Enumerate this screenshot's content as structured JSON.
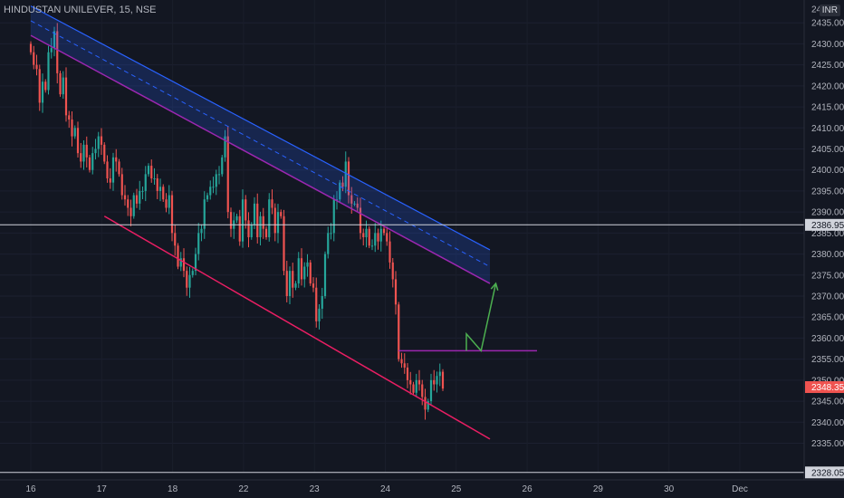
{
  "header": {
    "symbol_line": "HINDUSTAN UNILEVER, 15, NSE",
    "currency": "INR"
  },
  "colors": {
    "background": "#131722",
    "up": "#26a69a",
    "down": "#ef5350",
    "channel": "#2962ff",
    "purple": "#9c27b0",
    "support": "#e91e63",
    "arrow": "#4caf50",
    "hline": "#d1d4dc"
  },
  "chart_data": {
    "type": "candlestick",
    "title": "",
    "x_ticks": [
      "16",
      "17",
      "18",
      "22",
      "23",
      "24",
      "25",
      "26",
      "29",
      "30",
      "Dec"
    ],
    "y_ticks": [
      2335,
      2340,
      2345,
      2350,
      2355,
      2360,
      2365,
      2370,
      2375,
      2380,
      2385,
      2390,
      2395,
      2400,
      2405,
      2410,
      2415,
      2420,
      2425,
      2430,
      2435
    ],
    "y_top_label_partial": "24",
    "ylim": [
      2328,
      2440
    ],
    "price_labels": [
      {
        "value": "2386.95",
        "kind": "horizontal-line"
      },
      {
        "value": "2348.35",
        "kind": "last-price"
      },
      {
        "value": "2328.05",
        "kind": "horizontal-line"
      }
    ],
    "horizontal_lines": [
      2386.95,
      2328.05
    ],
    "closes": [
      2428,
      2425,
      2424,
      2416,
      2421,
      2419,
      2428,
      2429,
      2433,
      2423,
      2418,
      2422,
      2413,
      2412,
      2408,
      2410,
      2404,
      2402,
      2406,
      2403,
      2400,
      2404,
      2405,
      2408,
      2406,
      2402,
      2398,
      2397,
      2403,
      2402,
      2399,
      2394,
      2393,
      2391,
      2389,
      2394,
      2392,
      2395,
      2395,
      2399,
      2401,
      2398,
      2398,
      2395,
      2396,
      2393,
      2391,
      2394,
      2385,
      2382,
      2377,
      2379,
      2376,
      2372,
      2375,
      2376,
      2380,
      2385,
      2386,
      2393,
      2394,
      2396,
      2396,
      2399,
      2399,
      2403,
      2408,
      2390,
      2386,
      2388,
      2389,
      2383,
      2393,
      2388,
      2384,
      2387,
      2392,
      2384,
      2389,
      2386,
      2384,
      2393,
      2391,
      2385,
      2390,
      2389,
      2376,
      2370,
      2376,
      2372,
      2373,
      2379,
      2374,
      2377,
      2378,
      2373,
      2372,
      2364,
      2367,
      2370,
      2380,
      2385,
      2385,
      2393,
      2393,
      2397,
      2396,
      2402,
      2394,
      2392,
      2392,
      2391,
      2385,
      2384,
      2386,
      2382,
      2382,
      2385,
      2383,
      2386,
      2385,
      2383,
      2378,
      2374,
      2368,
      2355,
      2354,
      2353,
      2350,
      2349,
      2347,
      2350,
      2349,
      2346,
      2343,
      2345,
      2350,
      2349,
      2351,
      2352,
      2348
    ],
    "annotations": [
      {
        "type": "parallel-channel",
        "from": {
          "bar": 0,
          "price": 2439
        },
        "to": {
          "bar": 156,
          "price": 2381
        },
        "lower_from": 2432,
        "lower_to": 2373
      },
      {
        "type": "trend-line",
        "from": {
          "bar": 25,
          "price": 2389
        },
        "to": {
          "bar": 156,
          "price": 2336
        }
      },
      {
        "type": "horizontal-segment",
        "from_bar": 125,
        "to_bar": 172,
        "price": 2357
      },
      {
        "type": "projection-arrow",
        "points": [
          {
            "bar": 148,
            "price": 2357
          },
          {
            "bar": 148,
            "price": 2361
          },
          {
            "bar": 153,
            "price": 2357
          },
          {
            "bar": 158,
            "price": 2373
          }
        ]
      }
    ]
  }
}
